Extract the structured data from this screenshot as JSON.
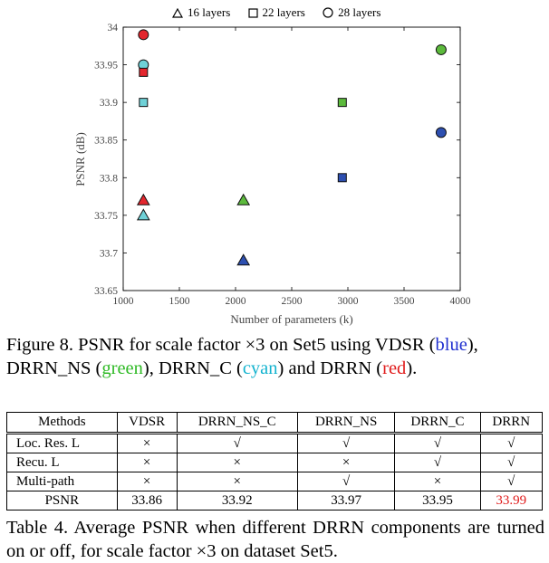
{
  "chart_data": {
    "type": "scatter",
    "xlabel": "Number of parameters (k)",
    "ylabel": "PSNR (dB)",
    "xlim": [
      1000,
      4000
    ],
    "ylim": [
      33.65,
      34
    ],
    "xticks": [
      1000,
      1500,
      2000,
      2500,
      3000,
      3500,
      4000
    ],
    "yticks": [
      33.65,
      33.7,
      33.75,
      33.8,
      33.85,
      33.9,
      33.95,
      34
    ],
    "grid": false,
    "legend": {
      "placement": "top",
      "entries": [
        {
          "marker": "triangle",
          "label": "16 layers"
        },
        {
          "marker": "square",
          "label": "22 layers"
        },
        {
          "marker": "circle",
          "label": "28 layers"
        }
      ]
    },
    "colors": {
      "blue": "#2d4fb0",
      "green": "#5cba3c",
      "cyan": "#6fd1d7",
      "red": "#e3262d"
    },
    "points": [
      {
        "x": 2070,
        "y": 33.69,
        "marker": "triangle",
        "color": "blue"
      },
      {
        "x": 2950,
        "y": 33.8,
        "marker": "square",
        "color": "blue"
      },
      {
        "x": 3830,
        "y": 33.86,
        "marker": "circle",
        "color": "blue"
      },
      {
        "x": 2070,
        "y": 33.77,
        "marker": "triangle",
        "color": "green"
      },
      {
        "x": 2950,
        "y": 33.9,
        "marker": "square",
        "color": "green"
      },
      {
        "x": 3830,
        "y": 33.97,
        "marker": "circle",
        "color": "green"
      },
      {
        "x": 1180,
        "y": 33.75,
        "marker": "triangle",
        "color": "cyan"
      },
      {
        "x": 1180,
        "y": 33.9,
        "marker": "square",
        "color": "cyan"
      },
      {
        "x": 1180,
        "y": 33.95,
        "marker": "circle",
        "color": "cyan"
      },
      {
        "x": 1180,
        "y": 33.77,
        "marker": "triangle",
        "color": "red"
      },
      {
        "x": 1180,
        "y": 33.94,
        "marker": "square",
        "color": "red"
      },
      {
        "x": 1180,
        "y": 33.99,
        "marker": "circle",
        "color": "red"
      }
    ]
  },
  "figure_caption": {
    "prefix": "Figure 8. PSNR for scale factor ×3 on Set5 using VDSR (",
    "blue": "blue",
    "part2": "), DRRN_NS (",
    "green": "green",
    "part3": "), DRRN_C (",
    "cyan": "cyan",
    "part4": ") and DRRN (",
    "red": "red",
    "suffix": ")."
  },
  "table": {
    "headers": [
      "Methods",
      "VDSR",
      "DRRN_NS_C",
      "DRRN_NS",
      "DRRN_C",
      "DRRN"
    ],
    "rows": [
      {
        "label": "Loc. Res. L",
        "cells": [
          "×",
          "√",
          "√",
          "√",
          "√"
        ]
      },
      {
        "label": "Recu. L",
        "cells": [
          "×",
          "×",
          "×",
          "√",
          "√"
        ]
      },
      {
        "label": "Multi-path",
        "cells": [
          "×",
          "×",
          "√",
          "×",
          "√"
        ]
      }
    ],
    "psnr": {
      "label": "PSNR",
      "cells": [
        "33.86",
        "33.92",
        "33.97",
        "33.95",
        "33.99"
      ]
    }
  },
  "table_caption": "Table 4. Average PSNR when different DRRN components are turned on or off, for scale factor ×3 on dataset Set5."
}
